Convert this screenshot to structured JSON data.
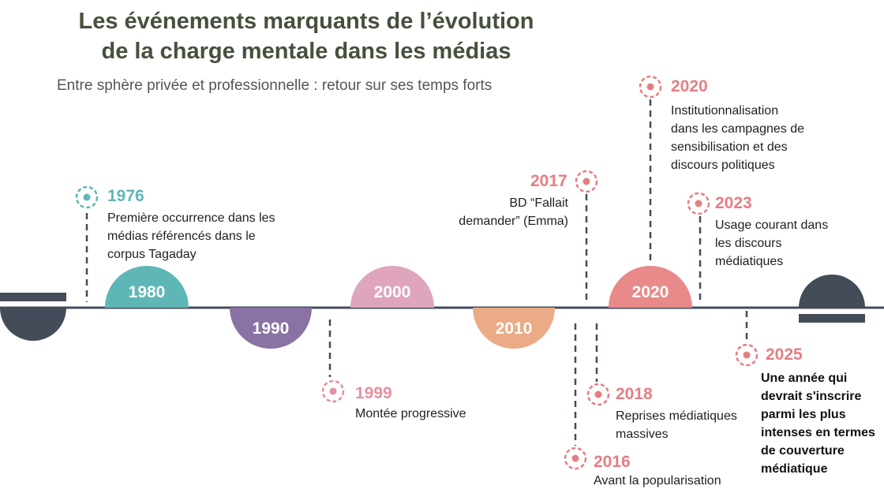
{
  "header": {
    "title_line1": "Les événements marquants de l’évolution",
    "title_line2": "de la charge mentale dans les médias",
    "subtitle": "Entre sphère privée et professionnelle : retour sur ses temps forts"
  },
  "colors": {
    "teal": "#5fb6b6",
    "purple": "#8a72a4",
    "pink": "#dfa5bd",
    "peach": "#ebab86",
    "coral": "#e88a8a",
    "dark": "#444c5a",
    "line": "#444c5a",
    "year_teal": "#5fb6b6",
    "year_pink": "#e3919f",
    "year_coral": "#e57e84"
  },
  "decades": [
    {
      "label": "1980",
      "color": "#5fb6b6"
    },
    {
      "label": "1990",
      "color": "#8a72a4"
    },
    {
      "label": "2000",
      "color": "#dfa5bd"
    },
    {
      "label": "2010",
      "color": "#ebab86"
    },
    {
      "label": "2020",
      "color": "#e88a8a"
    }
  ],
  "events": [
    {
      "year": "1976",
      "lines": [
        "Première occurrence dans les",
        "médias référencés dans le",
        "corpus Tagaday"
      ],
      "icon": "target-icon"
    },
    {
      "year": "1999",
      "lines": [
        "Montée progressive"
      ],
      "icon": "target-icon"
    },
    {
      "year": "2016",
      "lines": [
        "Avant la popularisation"
      ],
      "icon": "target-icon"
    },
    {
      "year": "2017",
      "lines": [
        "BD “Fallait",
        "demander” (Emma)"
      ],
      "icon": "target-icon"
    },
    {
      "year": "2018",
      "lines": [
        "Reprises médiatiques",
        "massives"
      ],
      "icon": "target-icon"
    },
    {
      "year": "2020",
      "lines": [
        "Institutionnalisation",
        "dans les campagnes de",
        "sensibilisation et des",
        "discours politiques"
      ],
      "icon": "target-icon"
    },
    {
      "year": "2023",
      "lines": [
        "Usage courant dans",
        "les discours",
        "médiatiques"
      ],
      "icon": "target-icon"
    },
    {
      "year": "2025",
      "lines": [
        "Une année qui",
        "devrait s'inscrire",
        "parmi les plus",
        "intenses en termes",
        "de couverture",
        "médiatique"
      ],
      "icon": "target-icon"
    }
  ]
}
